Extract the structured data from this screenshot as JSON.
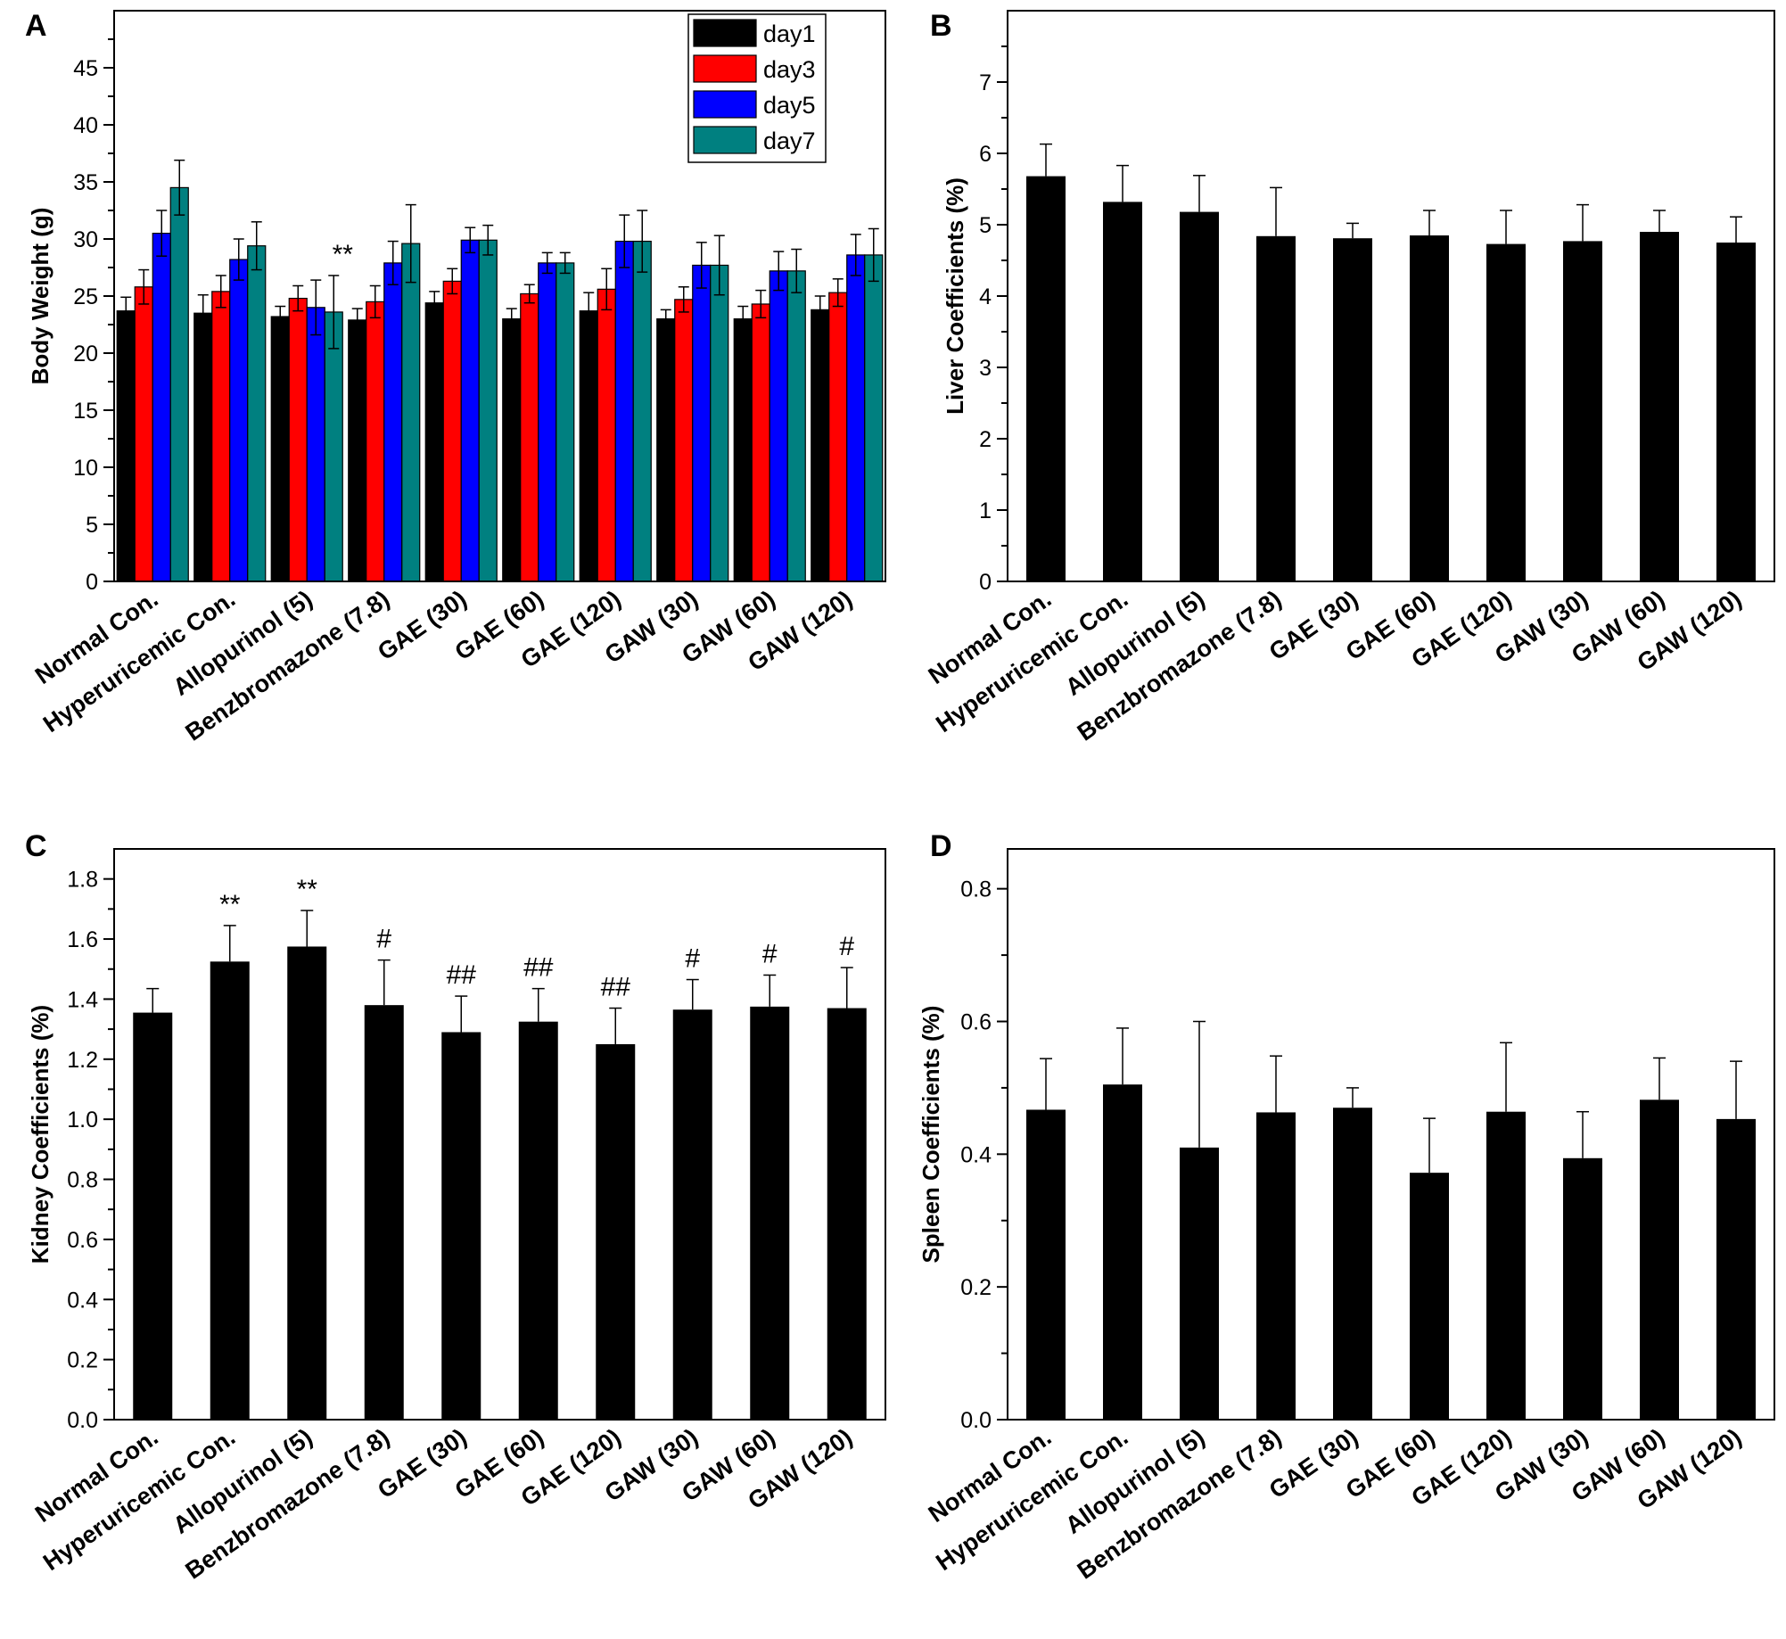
{
  "chart_data": [
    {
      "panel": "A",
      "type": "bar",
      "ylabel": "Body Weight (g)",
      "ylim": [
        0,
        50
      ],
      "yticks": [
        0,
        5,
        10,
        15,
        20,
        25,
        30,
        35,
        40,
        45
      ],
      "legend_position": "top-right",
      "categories": [
        "Normal Con.",
        "Hyperuricemic Con.",
        "Allopurinol (5)",
        "Benzbromazone (7.8)",
        "GAE (30)",
        "GAE (60)",
        "GAE (120)",
        "GAW (30)",
        "GAW (60)",
        "GAW (120)"
      ],
      "series": [
        {
          "name": "day1",
          "color": "#000000",
          "values": [
            23.7,
            23.5,
            23.2,
            22.9,
            24.4,
            23.0,
            23.7,
            23.0,
            23.0,
            23.8
          ],
          "errors": [
            1.2,
            1.6,
            0.9,
            1.0,
            1.0,
            0.9,
            1.6,
            0.8,
            1.1,
            1.2
          ]
        },
        {
          "name": "day3",
          "color": "#ff0000",
          "values": [
            25.8,
            25.4,
            24.8,
            24.5,
            26.3,
            25.2,
            25.6,
            24.7,
            24.3,
            25.3
          ],
          "errors": [
            1.5,
            1.4,
            1.1,
            1.4,
            1.1,
            0.8,
            1.8,
            1.1,
            1.2,
            1.2
          ]
        },
        {
          "name": "day5",
          "color": "#0000ff",
          "values": [
            30.5,
            28.2,
            24.0,
            27.9,
            29.9,
            27.9,
            29.8,
            27.7,
            27.2,
            28.6
          ],
          "errors": [
            2.0,
            1.8,
            2.4,
            1.9,
            1.1,
            0.9,
            2.3,
            2.0,
            1.7,
            1.8
          ]
        },
        {
          "name": "day7",
          "color": "#008080",
          "values": [
            34.5,
            29.4,
            23.6,
            29.6,
            29.9,
            27.9,
            29.8,
            27.7,
            27.2,
            28.6
          ],
          "errors": [
            2.4,
            2.1,
            3.2,
            3.4,
            1.3,
            0.9,
            2.7,
            2.6,
            1.9,
            2.3
          ]
        }
      ],
      "annotations": [
        {
          "text": "**",
          "category_index": 2,
          "series_index": 3
        }
      ]
    },
    {
      "panel": "B",
      "type": "bar",
      "ylabel": "Liver Coefficients (%)",
      "ylim": [
        0,
        8
      ],
      "yticks": [
        0,
        1,
        2,
        3,
        4,
        5,
        6,
        7
      ],
      "categories": [
        "Normal Con.",
        "Hyperuricemic Con.",
        "Allopurinol (5)",
        "Benzbromazone (7.8)",
        "GAE (30)",
        "GAE (60)",
        "GAE (120)",
        "GAW (30)",
        "GAW (60)",
        "GAW (120)"
      ],
      "values": [
        5.68,
        5.32,
        5.18,
        4.84,
        4.81,
        4.85,
        4.73,
        4.77,
        4.9,
        4.75
      ],
      "errors": [
        0.45,
        0.51,
        0.51,
        0.68,
        0.21,
        0.35,
        0.47,
        0.51,
        0.3,
        0.36
      ],
      "bar_color": "#000000",
      "annotations": []
    },
    {
      "panel": "C",
      "type": "bar",
      "ylabel": "Kidney Coefficients (%)",
      "ylim": [
        0,
        1.9
      ],
      "yticks": [
        0.0,
        0.2,
        0.4,
        0.6,
        0.8,
        1.0,
        1.2,
        1.4,
        1.6,
        1.8
      ],
      "categories": [
        "Normal Con.",
        "Hyperuricemic Con.",
        "Allopurinol (5)",
        "Benzbromazone (7.8)",
        "GAE (30)",
        "GAE (60)",
        "GAE (120)",
        "GAW (30)",
        "GAW (60)",
        "GAW (120)"
      ],
      "values": [
        1.355,
        1.525,
        1.575,
        1.38,
        1.29,
        1.325,
        1.25,
        1.365,
        1.375,
        1.37
      ],
      "errors": [
        0.08,
        0.12,
        0.12,
        0.15,
        0.12,
        0.11,
        0.12,
        0.1,
        0.105,
        0.135
      ],
      "bar_color": "#000000",
      "annotations": [
        {
          "text": "",
          "category_index": 0
        },
        {
          "text": "**",
          "category_index": 1
        },
        {
          "text": "**",
          "category_index": 2
        },
        {
          "text": "#",
          "category_index": 3
        },
        {
          "text": "##",
          "category_index": 4
        },
        {
          "text": "##",
          "category_index": 5
        },
        {
          "text": "##",
          "category_index": 6
        },
        {
          "text": "#",
          "category_index": 7
        },
        {
          "text": "#",
          "category_index": 8
        },
        {
          "text": "#",
          "category_index": 9
        }
      ]
    },
    {
      "panel": "D",
      "type": "bar",
      "ylabel": "Spleen Coefficients (%)",
      "ylim": [
        0,
        0.86
      ],
      "yticks": [
        0.0,
        0.2,
        0.4,
        0.6,
        0.8
      ],
      "categories": [
        "Normal Con.",
        "Hyperuricemic Con.",
        "Allopurinol (5)",
        "Benzbromazone (7.8)",
        "GAE (30)",
        "GAE (60)",
        "GAE (120)",
        "GAW (30)",
        "GAW (60)",
        "GAW (120)"
      ],
      "values": [
        0.467,
        0.505,
        0.41,
        0.463,
        0.47,
        0.372,
        0.464,
        0.394,
        0.482,
        0.453
      ],
      "errors": [
        0.077,
        0.085,
        0.19,
        0.085,
        0.03,
        0.082,
        0.104,
        0.07,
        0.063,
        0.087
      ],
      "bar_color": "#000000",
      "annotations": []
    }
  ]
}
